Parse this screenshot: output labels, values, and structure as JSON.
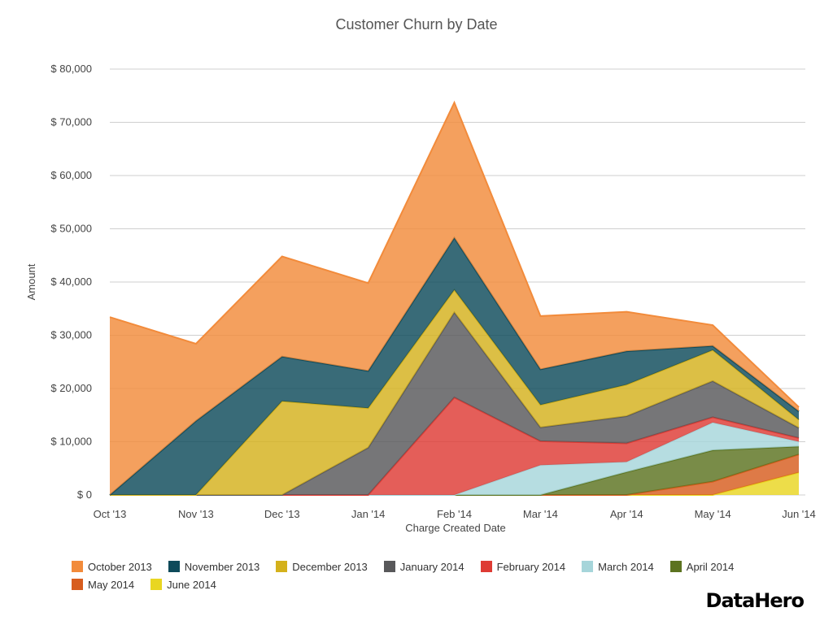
{
  "brand": "DataHero",
  "chart_data": {
    "type": "area",
    "stacked": true,
    "title": "Customer Churn by Date",
    "xlabel": "Charge Created Date",
    "ylabel": "Amount",
    "categories": [
      "Oct '13",
      "Nov '13",
      "Dec '13",
      "Jan '14",
      "Feb '14",
      "Mar '14",
      "Apr '14",
      "May '14",
      "Jun '14"
    ],
    "y_ticks": [
      "$ 0",
      "$ 10,000",
      "$ 20,000",
      "$ 30,000",
      "$ 40,000",
      "$ 50,000",
      "$ 60,000",
      "$ 70,000",
      "$ 80,000"
    ],
    "ylim": [
      0,
      80000
    ],
    "grid": true,
    "legend_position": "bottom",
    "series": [
      {
        "name": "June 2014",
        "color": "#e9d621",
        "values": [
          0,
          0,
          0,
          0,
          0,
          0,
          0,
          0,
          4200
        ]
      },
      {
        "name": "May 2014",
        "color": "#d75d1e",
        "values": [
          0,
          0,
          0,
          0,
          0,
          0,
          0,
          2500,
          3400
        ]
      },
      {
        "name": "April 2014",
        "color": "#5c7320",
        "values": [
          0,
          0,
          0,
          0,
          0,
          0,
          4300,
          5900,
          1500
        ]
      },
      {
        "name": "March 2014",
        "color": "#a6d5da",
        "values": [
          0,
          0,
          0,
          0,
          0,
          5600,
          1900,
          5200,
          900
        ]
      },
      {
        "name": "February 2014",
        "color": "#de3b34",
        "values": [
          0,
          0,
          0,
          0,
          18300,
          4500,
          3500,
          1000,
          700
        ]
      },
      {
        "name": "January 2014",
        "color": "#58585a",
        "values": [
          0,
          0,
          0,
          8900,
          16000,
          2600,
          5100,
          6800,
          1900
        ]
      },
      {
        "name": "December 2013",
        "color": "#d4b11c",
        "values": [
          0,
          0,
          17600,
          7400,
          4200,
          4200,
          5900,
          5800,
          1500
        ]
      },
      {
        "name": "November 2013",
        "color": "#0e4a5a",
        "values": [
          0,
          13900,
          8400,
          7000,
          9800,
          6700,
          6300,
          800,
          1600
        ]
      },
      {
        "name": "October 2013",
        "color": "#f28b3b",
        "values": [
          33400,
          14500,
          18800,
          16500,
          25400,
          10000,
          7400,
          3900,
          800
        ]
      }
    ],
    "legend_order": [
      "October 2013",
      "November 2013",
      "December 2013",
      "January 2014",
      "February 2014",
      "March 2014",
      "April 2014",
      "May 2014",
      "June 2014"
    ]
  }
}
